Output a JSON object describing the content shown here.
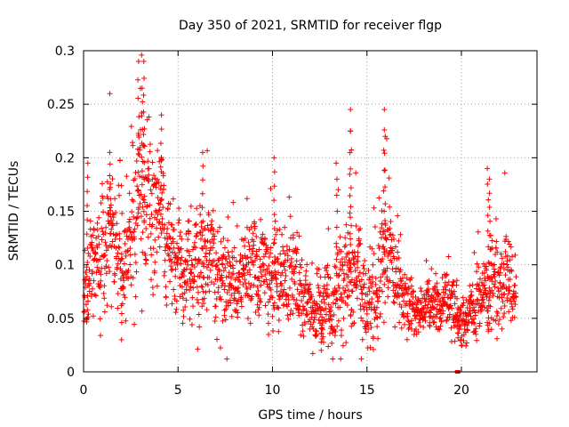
{
  "chart_data": {
    "type": "scatter",
    "title": "Day 350 of 2021, SRMTID for receiver flgp",
    "xlabel": "GPS time / hours",
    "ylabel": "SRMTID / TECUs",
    "xlim": [
      0,
      24
    ],
    "ylim": [
      0,
      0.3
    ],
    "xticks": [
      0,
      5,
      10,
      15,
      20
    ],
    "xtick_labels": [
      "0",
      "5",
      "10",
      "15",
      "20"
    ],
    "yticks": [
      0,
      0.05,
      0.1,
      0.15,
      0.2,
      0.25,
      0.3
    ],
    "ytick_labels": [
      "0",
      "0.05",
      "0.1",
      "0.15",
      "0.2",
      "0.25",
      "0.3"
    ],
    "grid": true,
    "marker": "+",
    "color": "#ff0000",
    "series": [
      {
        "name": "SRMTID",
        "profile_hours": [
          0,
          0.5,
          1,
          1.5,
          2,
          2.5,
          3,
          3.5,
          4,
          4.5,
          5,
          5.5,
          6,
          6.5,
          7,
          7.5,
          8,
          8.5,
          9,
          9.5,
          10,
          10.5,
          11,
          11.5,
          12,
          12.5,
          13,
          13.5,
          14,
          14.5,
          15,
          15.5,
          16,
          16.5,
          17,
          17.5,
          18,
          18.5,
          19,
          19.5,
          20,
          20.5,
          21,
          21.5,
          22,
          22.5,
          23
        ],
        "profile_center": [
          0.085,
          0.095,
          0.11,
          0.12,
          0.11,
          0.12,
          0.16,
          0.17,
          0.14,
          0.11,
          0.085,
          0.095,
          0.105,
          0.1,
          0.095,
          0.085,
          0.08,
          0.095,
          0.1,
          0.095,
          0.095,
          0.09,
          0.085,
          0.07,
          0.055,
          0.055,
          0.075,
          0.075,
          0.085,
          0.08,
          0.075,
          0.085,
          0.095,
          0.09,
          0.06,
          0.06,
          0.06,
          0.06,
          0.06,
          0.065,
          0.045,
          0.055,
          0.065,
          0.075,
          0.08,
          0.085,
          0.09
        ],
        "profile_spread": [
          0.03,
          0.035,
          0.04,
          0.045,
          0.05,
          0.05,
          0.06,
          0.055,
          0.045,
          0.04,
          0.03,
          0.035,
          0.04,
          0.035,
          0.035,
          0.035,
          0.03,
          0.035,
          0.04,
          0.035,
          0.035,
          0.035,
          0.035,
          0.03,
          0.025,
          0.025,
          0.035,
          0.035,
          0.045,
          0.04,
          0.035,
          0.04,
          0.04,
          0.035,
          0.02,
          0.02,
          0.02,
          0.02,
          0.02,
          0.025,
          0.015,
          0.02,
          0.025,
          0.03,
          0.035,
          0.035,
          0.03
        ],
        "points_per_hour": 90,
        "coverage_hours": [
          0,
          22.9
        ],
        "peaks": [
          {
            "x": 0.2,
            "y": 0.195
          },
          {
            "x": 1.4,
            "y": 0.205
          },
          {
            "x": 2.9,
            "y": 0.29
          },
          {
            "x": 3.2,
            "y": 0.29
          },
          {
            "x": 3.1,
            "y": 0.265
          },
          {
            "x": 4.1,
            "y": 0.24
          },
          {
            "x": 6.3,
            "y": 0.205
          },
          {
            "x": 10.1,
            "y": 0.2
          },
          {
            "x": 13.4,
            "y": 0.195
          },
          {
            "x": 14.1,
            "y": 0.245
          },
          {
            "x": 14.15,
            "y": 0.225
          },
          {
            "x": 15.9,
            "y": 0.245
          },
          {
            "x": 15.95,
            "y": 0.22
          },
          {
            "x": 21.4,
            "y": 0.19
          },
          {
            "x": 21.5,
            "y": 0.18
          }
        ],
        "lows": [
          {
            "x": 2.0,
            "y": 0.03
          },
          {
            "x": 12.6,
            "y": 0.02
          },
          {
            "x": 19.8,
            "y": 0.0
          }
        ]
      }
    ]
  }
}
